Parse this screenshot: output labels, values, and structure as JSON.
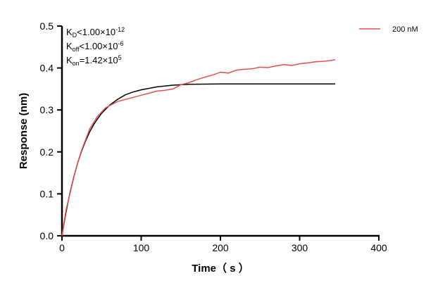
{
  "chart_data": {
    "type": "line",
    "xlabel": "Time（ s ）",
    "ylabel": "Response (nm)",
    "xlim": [
      0,
      400
    ],
    "ylim": [
      0,
      0.5
    ],
    "xticks": [
      "0",
      "100",
      "200",
      "300",
      "400"
    ],
    "yticks": [
      "0.0",
      "0.1",
      "0.2",
      "0.3",
      "0.4",
      "0.5"
    ],
    "grid": false,
    "legend_placement": "top-right",
    "annotations": [
      {
        "k": "K",
        "sub": "D",
        "rel": "<1.00×10",
        "sup": "-12"
      },
      {
        "k": "K",
        "sub": "off",
        "rel": "<1.00×10",
        "sup": "-6"
      },
      {
        "k": "K",
        "sub": "on",
        "rel": "=1.42×10",
        "sup": "5"
      }
    ],
    "series": [
      {
        "name": "200 nM",
        "color": "#e05050",
        "x": [
          0,
          5,
          10,
          15,
          20,
          25,
          30,
          35,
          40,
          45,
          50,
          55,
          60,
          65,
          70,
          80,
          90,
          100,
          110,
          120,
          130,
          140,
          150,
          160,
          170,
          180,
          190,
          200,
          210,
          220,
          230,
          240,
          250,
          260,
          270,
          280,
          290,
          300,
          310,
          320,
          330,
          340,
          345
        ],
        "y": [
          0.0,
          0.06,
          0.1,
          0.14,
          0.175,
          0.205,
          0.23,
          0.255,
          0.27,
          0.285,
          0.295,
          0.305,
          0.31,
          0.315,
          0.32,
          0.325,
          0.33,
          0.335,
          0.34,
          0.345,
          0.347,
          0.35,
          0.36,
          0.365,
          0.372,
          0.378,
          0.383,
          0.39,
          0.388,
          0.395,
          0.397,
          0.398,
          0.402,
          0.401,
          0.405,
          0.408,
          0.406,
          0.41,
          0.412,
          0.415,
          0.416,
          0.418,
          0.42
        ]
      },
      {
        "color": "#000000",
        "x": [
          0,
          5,
          10,
          15,
          20,
          25,
          30,
          35,
          40,
          45,
          50,
          60,
          70,
          80,
          90,
          100,
          120,
          140,
          160,
          200,
          345
        ],
        "y": [
          0,
          0.055,
          0.102,
          0.141,
          0.175,
          0.203,
          0.227,
          0.248,
          0.265,
          0.279,
          0.292,
          0.311,
          0.325,
          0.336,
          0.343,
          0.348,
          0.355,
          0.359,
          0.361,
          0.362,
          0.362
        ]
      }
    ]
  }
}
